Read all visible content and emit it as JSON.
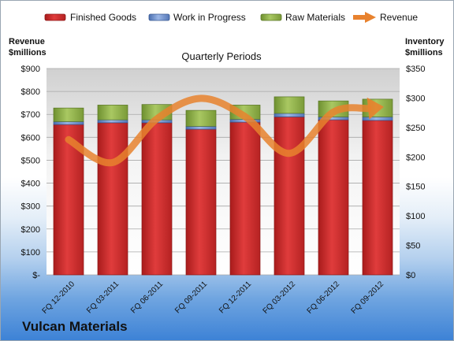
{
  "company_name": "Vulcan Materials",
  "chart_data": {
    "type": "bar",
    "stacked": true,
    "title": "Quarterly Periods",
    "categories": [
      "FQ 12-2010",
      "FQ 03-2011",
      "FQ 06-2011",
      "FQ 09-2011",
      "FQ 12-2011",
      "FQ 03-2012",
      "FQ 06-2012",
      "FQ 09-2012"
    ],
    "series": [
      {
        "name": "Finished Goods",
        "axis": "right",
        "color": "#cc2a2a",
        "values": [
          255,
          258,
          258,
          247,
          259,
          268,
          263,
          262
        ]
      },
      {
        "name": "Work in Progress",
        "axis": "right",
        "color": "#6a8fd0",
        "values": [
          5,
          5,
          5,
          5,
          5,
          6,
          5,
          6
        ]
      },
      {
        "name": "Raw Materials",
        "axis": "right",
        "color": "#8fb04c",
        "values": [
          23,
          25,
          26,
          27,
          24,
          28,
          27,
          30
        ]
      },
      {
        "name": "Revenue",
        "axis": "left",
        "type": "line",
        "color": "#e8822e",
        "values": [
          590,
          490,
          680,
          770,
          690,
          530,
          710,
          730
        ]
      }
    ],
    "y_left": {
      "label": "Revenue $millions",
      "min": 0,
      "max": 900,
      "ticks": [
        "$-",
        "$100",
        "$200",
        "$300",
        "$400",
        "$500",
        "$600",
        "$700",
        "$800",
        "$900"
      ]
    },
    "y_right": {
      "label": "Inventory $millions",
      "min": 0,
      "max": 350,
      "ticks": [
        "$0",
        "$50",
        "$100",
        "$150",
        "$200",
        "$250",
        "$300",
        "$350"
      ]
    },
    "grid": true,
    "legend": "top"
  }
}
